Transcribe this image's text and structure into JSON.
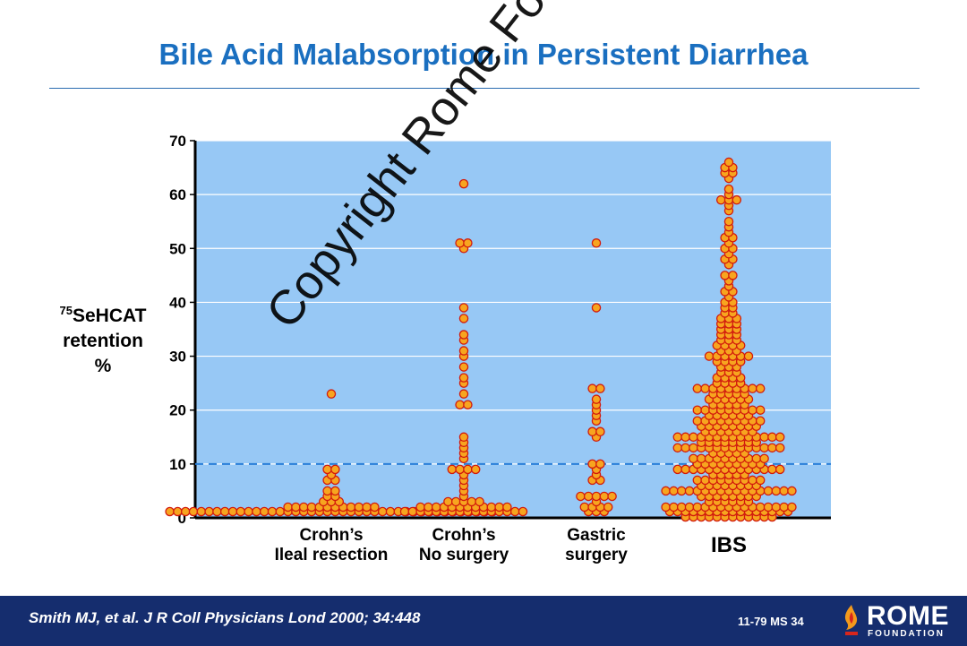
{
  "slide": {
    "title": "Bile Acid Malabsorption in Persistent Diarrhea",
    "watermark": "Copyright Rome Foundation"
  },
  "chart_data": {
    "type": "scatter",
    "subtype": "dot-plot",
    "ylabel_sup": "75",
    "ylabel_main": "SeHCAT",
    "ylabel_line2": "retention",
    "ylabel_line3": "%",
    "ylim": [
      0,
      70
    ],
    "yticks": [
      0,
      10,
      20,
      30,
      40,
      50,
      60,
      70
    ],
    "threshold": 10,
    "grid": true,
    "categories": [
      {
        "name": "Crohn's ileal resection",
        "label_lines": [
          "Crohn’s",
          "Ileal resection"
        ],
        "values": [
          1,
          1,
          1,
          1,
          1,
          1,
          1,
          1,
          1,
          1,
          1,
          1,
          1,
          1,
          1,
          1,
          1,
          1,
          1,
          1,
          1,
          1,
          1,
          1,
          1,
          1,
          1,
          1,
          1,
          1,
          1,
          1,
          1,
          1,
          1,
          1,
          1,
          1,
          1,
          1,
          1,
          1,
          2,
          2,
          2,
          2,
          2,
          2,
          2,
          2,
          2,
          2,
          2,
          2,
          3,
          3,
          3,
          4,
          4,
          5,
          5,
          7,
          7,
          8,
          9,
          9,
          23
        ]
      },
      {
        "name": "Crohn's no surgery",
        "label_lines": [
          "Crohn’s",
          "No surgery"
        ],
        "values": [
          1,
          1,
          1,
          1,
          1,
          1,
          1,
          1,
          1,
          1,
          1,
          1,
          1,
          1,
          1,
          1,
          2,
          2,
          2,
          2,
          2,
          2,
          2,
          2,
          2,
          2,
          2,
          2,
          3,
          3,
          3,
          3,
          3,
          4,
          5,
          6,
          7,
          8,
          9,
          9,
          9,
          9,
          11,
          12,
          13,
          14,
          15,
          21,
          21,
          23,
          25,
          26,
          28,
          30,
          31,
          33,
          34,
          37,
          39,
          50,
          51,
          51,
          62
        ]
      },
      {
        "name": "Gastric surgery",
        "label_lines": [
          "Gastric",
          "surgery"
        ],
        "values": [
          1,
          1,
          1,
          2,
          2,
          2,
          2,
          3,
          4,
          4,
          4,
          4,
          4,
          7,
          7,
          8,
          9,
          10,
          10,
          15,
          16,
          16,
          18,
          19,
          20,
          21,
          22,
          24,
          24,
          39,
          51
        ]
      },
      {
        "name": "IBS",
        "label_lines": [
          "IBS"
        ],
        "values": [
          0,
          0,
          0,
          0,
          0,
          0,
          0,
          0,
          0,
          0,
          0,
          0,
          1,
          1,
          1,
          1,
          1,
          1,
          1,
          1,
          1,
          1,
          1,
          1,
          1,
          1,
          1,
          1,
          2,
          2,
          2,
          2,
          2,
          2,
          2,
          2,
          2,
          2,
          2,
          2,
          2,
          2,
          2,
          2,
          2,
          3,
          3,
          3,
          3,
          3,
          3,
          4,
          4,
          4,
          4,
          4,
          4,
          4,
          4,
          5,
          5,
          5,
          5,
          5,
          5,
          5,
          5,
          5,
          5,
          5,
          5,
          5,
          5,
          5,
          5,
          5,
          6,
          6,
          6,
          6,
          6,
          6,
          6,
          6,
          7,
          7,
          7,
          7,
          7,
          7,
          7,
          7,
          7,
          8,
          8,
          8,
          8,
          8,
          9,
          9,
          9,
          9,
          9,
          9,
          9,
          9,
          9,
          9,
          9,
          9,
          9,
          9,
          10,
          10,
          10,
          10,
          10,
          10,
          10,
          10,
          10,
          11,
          11,
          11,
          11,
          11,
          11,
          11,
          11,
          11,
          11,
          12,
          12,
          12,
          12,
          12,
          13,
          13,
          13,
          13,
          13,
          13,
          13,
          13,
          13,
          13,
          13,
          13,
          13,
          13,
          14,
          14,
          14,
          14,
          14,
          14,
          14,
          14,
          15,
          15,
          15,
          15,
          15,
          15,
          15,
          15,
          15,
          15,
          15,
          15,
          15,
          15,
          16,
          16,
          16,
          16,
          16,
          16,
          16,
          17,
          17,
          17,
          17,
          17,
          17,
          17,
          17,
          18,
          18,
          18,
          18,
          18,
          18,
          18,
          18,
          18,
          19,
          19,
          19,
          19,
          19,
          19,
          20,
          20,
          20,
          20,
          20,
          20,
          20,
          20,
          20,
          21,
          21,
          21,
          21,
          21,
          22,
          22,
          22,
          22,
          22,
          22,
          23,
          23,
          23,
          23,
          23,
          24,
          24,
          24,
          24,
          24,
          24,
          24,
          24,
          24,
          25,
          25,
          25,
          25,
          26,
          26,
          26,
          26,
          27,
          27,
          27,
          28,
          28,
          28,
          29,
          29,
          29,
          29,
          30,
          30,
          30,
          30,
          30,
          30,
          31,
          31,
          31,
          32,
          32,
          32,
          32,
          33,
          33,
          33,
          34,
          34,
          34,
          35,
          35,
          35,
          36,
          36,
          36,
          37,
          37,
          37,
          38,
          38,
          39,
          39,
          40,
          40,
          41,
          42,
          42,
          43,
          44,
          45,
          45,
          47,
          48,
          48,
          49,
          50,
          50,
          51,
          52,
          52,
          53,
          54,
          55,
          57,
          58,
          59,
          59,
          59,
          60,
          61,
          63,
          64,
          64,
          65,
          65,
          66
        ]
      }
    ]
  },
  "footer": {
    "citation": "Smith MJ, et al. J R Coll Physicians Lond 2000; 34:448",
    "slide_code": "11-79   MS 34",
    "logo_name": "ROME",
    "logo_sub": "FOUNDATION"
  },
  "colors": {
    "title": "#1a6fc0",
    "plot_bg": "#97c8f5",
    "dot_fill": "#f7a51f",
    "dot_stroke": "#d21a0c",
    "threshold": "#2a7fd8",
    "footer_bg": "#152d6e"
  }
}
